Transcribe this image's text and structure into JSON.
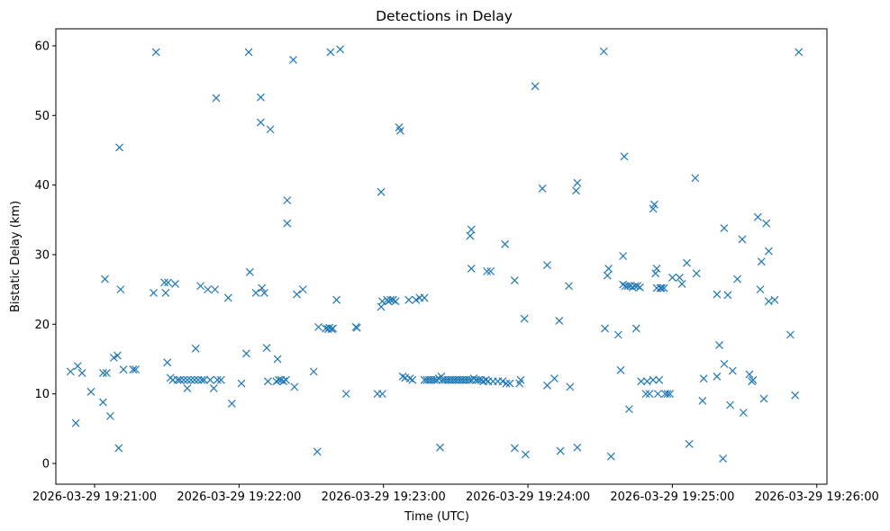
{
  "chart_data": {
    "type": "scatter",
    "title": "Detections in Delay",
    "xlabel": "Time (UTC)",
    "ylabel": "Bistatic Delay (km)",
    "marker": "x",
    "color": "#1f77b4",
    "x_unit": "seconds after 2026-03-29 19:21:00",
    "xlim": [
      -16.1,
      304.2
    ],
    "ylim": [
      -2.98,
      62.45
    ],
    "x_ticks": [
      {
        "value": 0,
        "label": "2026-03-29 19:21:00"
      },
      {
        "value": 60,
        "label": "2026-03-29 19:22:00"
      },
      {
        "value": 120,
        "label": "2026-03-29 19:23:00"
      },
      {
        "value": 180,
        "label": "2026-03-29 19:24:00"
      },
      {
        "value": 240,
        "label": "2026-03-29 19:25:00"
      },
      {
        "value": 300,
        "label": "2026-03-29 19:26:00"
      }
    ],
    "y_ticks": [
      {
        "value": 0,
        "label": "0"
      },
      {
        "value": 10,
        "label": "10"
      },
      {
        "value": 20,
        "label": "20"
      },
      {
        "value": 30,
        "label": "30"
      },
      {
        "value": 40,
        "label": "40"
      },
      {
        "value": 50,
        "label": "50"
      },
      {
        "value": 60,
        "label": "60"
      }
    ],
    "points": [
      [
        -10.0,
        13.2
      ],
      [
        -7.8,
        5.8
      ],
      [
        -7.0,
        14.0
      ],
      [
        -5.2,
        13.0
      ],
      [
        -1.5,
        10.3
      ],
      [
        3.5,
        8.8
      ],
      [
        3.5,
        13.0
      ],
      [
        4.3,
        26.5
      ],
      [
        5.0,
        13.0
      ],
      [
        6.5,
        6.8
      ],
      [
        8.0,
        15.2
      ],
      [
        9.5,
        15.5
      ],
      [
        10.0,
        2.2
      ],
      [
        10.3,
        45.4
      ],
      [
        10.8,
        25.0
      ],
      [
        12.0,
        13.5
      ],
      [
        16.0,
        13.5
      ],
      [
        17.0,
        13.5
      ],
      [
        24.5,
        24.5
      ],
      [
        25.5,
        59.1
      ],
      [
        29.0,
        26.0
      ],
      [
        29.5,
        24.5
      ],
      [
        30.2,
        14.5
      ],
      [
        30.5,
        26.0
      ],
      [
        31.5,
        12.3
      ],
      [
        32.5,
        12.0
      ],
      [
        33.5,
        25.8
      ],
      [
        34.5,
        12.0
      ],
      [
        35.5,
        12.0
      ],
      [
        37.0,
        12.0
      ],
      [
        38.5,
        12.0
      ],
      [
        38.5,
        10.8
      ],
      [
        40.0,
        12.0
      ],
      [
        41.5,
        12.0
      ],
      [
        42.0,
        16.5
      ],
      [
        43.0,
        12.0
      ],
      [
        44.0,
        25.5
      ],
      [
        44.5,
        12.0
      ],
      [
        45.5,
        12.0
      ],
      [
        47.0,
        25.0
      ],
      [
        48.0,
        12.0
      ],
      [
        49.5,
        10.8
      ],
      [
        50.0,
        25.0
      ],
      [
        50.5,
        52.5
      ],
      [
        51.0,
        12.0
      ],
      [
        52.5,
        12.0
      ],
      [
        55.5,
        23.8
      ],
      [
        57.0,
        8.6
      ],
      [
        61.0,
        11.5
      ],
      [
        63.0,
        15.8
      ],
      [
        64.0,
        59.1
      ],
      [
        64.5,
        27.5
      ],
      [
        67.0,
        24.5
      ],
      [
        69.0,
        52.6
      ],
      [
        69.0,
        49.0
      ],
      [
        69.5,
        25.2
      ],
      [
        70.5,
        24.5
      ],
      [
        71.5,
        16.6
      ],
      [
        72.0,
        11.8
      ],
      [
        73.0,
        48.0
      ],
      [
        75.5,
        11.8
      ],
      [
        76.0,
        15.0
      ],
      [
        76.5,
        12.0
      ],
      [
        77.5,
        12.0
      ],
      [
        78.5,
        11.8
      ],
      [
        79.5,
        12.0
      ],
      [
        80.0,
        37.8
      ],
      [
        80.0,
        34.5
      ],
      [
        82.5,
        58.0
      ],
      [
        83.0,
        11.0
      ],
      [
        84.0,
        24.3
      ],
      [
        86.5,
        25.0
      ],
      [
        91.0,
        13.2
      ],
      [
        92.5,
        1.7
      ],
      [
        93.0,
        19.6
      ],
      [
        96.0,
        19.4
      ],
      [
        97.0,
        19.3
      ],
      [
        97.5,
        19.5
      ],
      [
        98.0,
        59.1
      ],
      [
        98.5,
        19.3
      ],
      [
        99.0,
        19.4
      ],
      [
        100.5,
        23.5
      ],
      [
        102.0,
        59.5
      ],
      [
        104.5,
        10.0
      ],
      [
        108.5,
        19.6
      ],
      [
        109.0,
        19.5
      ],
      [
        117.5,
        10.0
      ],
      [
        119.5,
        10.0
      ],
      [
        119.0,
        39.0
      ],
      [
        119.0,
        22.5
      ],
      [
        119.5,
        23.3
      ],
      [
        121.5,
        23.5
      ],
      [
        122.0,
        23.3
      ],
      [
        123.0,
        23.5
      ],
      [
        124.0,
        23.5
      ],
      [
        125.0,
        23.3
      ],
      [
        126.5,
        48.3
      ],
      [
        127.0,
        47.8
      ],
      [
        128.0,
        12.5
      ],
      [
        129.0,
        12.3
      ],
      [
        130.5,
        23.5
      ],
      [
        131.0,
        12.2
      ],
      [
        132.0,
        12.0
      ],
      [
        133.5,
        23.5
      ],
      [
        135.0,
        23.8
      ],
      [
        137.0,
        23.8
      ],
      [
        137.0,
        12.0
      ],
      [
        138.0,
        12.0
      ],
      [
        139.0,
        12.0
      ],
      [
        140.0,
        12.0
      ],
      [
        141.0,
        12.0
      ],
      [
        142.0,
        12.0
      ],
      [
        143.0,
        12.2
      ],
      [
        143.5,
        2.3
      ],
      [
        144.0,
        12.5
      ],
      [
        144.5,
        12.0
      ],
      [
        145.5,
        12.0
      ],
      [
        146.5,
        12.0
      ],
      [
        147.5,
        12.0
      ],
      [
        148.5,
        12.0
      ],
      [
        149.5,
        12.0
      ],
      [
        150.5,
        12.0
      ],
      [
        151.5,
        12.0
      ],
      [
        152.5,
        12.0
      ],
      [
        153.5,
        12.0
      ],
      [
        154.5,
        12.0
      ],
      [
        155.5,
        12.0
      ],
      [
        156.0,
        32.7
      ],
      [
        156.5,
        33.6
      ],
      [
        156.5,
        28.0
      ],
      [
        156.5,
        12.0
      ],
      [
        157.5,
        12.2
      ],
      [
        158.5,
        12.0
      ],
      [
        159.5,
        12.0
      ],
      [
        160.5,
        12.0
      ],
      [
        161.5,
        11.8
      ],
      [
        162.5,
        12.0
      ],
      [
        163.0,
        27.6
      ],
      [
        163.5,
        11.8
      ],
      [
        164.5,
        27.6
      ],
      [
        165.5,
        11.8
      ],
      [
        167.5,
        11.8
      ],
      [
        169.5,
        11.8
      ],
      [
        170.5,
        31.5
      ],
      [
        171.0,
        11.5
      ],
      [
        172.5,
        11.5
      ],
      [
        174.5,
        26.3
      ],
      [
        174.5,
        2.2
      ],
      [
        176.5,
        11.5
      ],
      [
        177.0,
        12.0
      ],
      [
        178.5,
        20.8
      ],
      [
        179.0,
        1.3
      ],
      [
        183.0,
        54.2
      ],
      [
        186.0,
        39.5
      ],
      [
        188.0,
        28.5
      ],
      [
        188.0,
        11.2
      ],
      [
        191.0,
        12.2
      ],
      [
        193.0,
        20.5
      ],
      [
        193.5,
        1.8
      ],
      [
        197.0,
        25.5
      ],
      [
        197.5,
        11.0
      ],
      [
        200.0,
        39.2
      ],
      [
        200.5,
        40.3
      ],
      [
        200.5,
        2.3
      ],
      [
        211.5,
        59.2
      ],
      [
        212.0,
        19.4
      ],
      [
        213.0,
        27.0
      ],
      [
        213.5,
        28.0
      ],
      [
        214.5,
        1.0
      ],
      [
        217.5,
        18.5
      ],
      [
        218.5,
        13.4
      ],
      [
        219.5,
        25.7
      ],
      [
        219.5,
        29.8
      ],
      [
        220.0,
        44.1
      ],
      [
        220.5,
        25.5
      ],
      [
        221.5,
        25.5
      ],
      [
        222.0,
        7.8
      ],
      [
        222.5,
        25.5
      ],
      [
        223.5,
        25.3
      ],
      [
        224.5,
        25.5
      ],
      [
        225.0,
        19.4
      ],
      [
        225.5,
        25.5
      ],
      [
        226.5,
        25.3
      ],
      [
        227.0,
        11.8
      ],
      [
        229.0,
        10.0
      ],
      [
        229.5,
        11.8
      ],
      [
        230.5,
        10.0
      ],
      [
        232.0,
        12.0
      ],
      [
        232.0,
        36.6
      ],
      [
        232.5,
        37.2
      ],
      [
        233.0,
        27.3
      ],
      [
        233.5,
        25.2
      ],
      [
        233.5,
        28.0
      ],
      [
        234.0,
        10.0
      ],
      [
        234.5,
        12.0
      ],
      [
        235.0,
        25.2
      ],
      [
        235.5,
        25.2
      ],
      [
        236.5,
        25.2
      ],
      [
        237.0,
        10.0
      ],
      [
        238.0,
        10.0
      ],
      [
        239.0,
        10.0
      ],
      [
        240.0,
        26.7
      ],
      [
        243.0,
        26.7
      ],
      [
        244.0,
        25.8
      ],
      [
        246.0,
        28.8
      ],
      [
        247.0,
        2.8
      ],
      [
        249.5,
        41.0
      ],
      [
        250.0,
        27.3
      ],
      [
        252.5,
        9.0
      ],
      [
        253.0,
        12.2
      ],
      [
        258.5,
        24.3
      ],
      [
        258.5,
        12.5
      ],
      [
        259.5,
        17.0
      ],
      [
        261.0,
        0.7
      ],
      [
        261.5,
        33.8
      ],
      [
        261.5,
        14.3
      ],
      [
        263.0,
        24.2
      ],
      [
        264.0,
        8.4
      ],
      [
        265.0,
        13.3
      ],
      [
        267.0,
        26.5
      ],
      [
        269.0,
        32.2
      ],
      [
        269.5,
        7.3
      ],
      [
        272.0,
        12.8
      ],
      [
        273.0,
        11.8
      ],
      [
        273.5,
        12.0
      ],
      [
        275.5,
        35.4
      ],
      [
        276.5,
        25.0
      ],
      [
        277.0,
        29.0
      ],
      [
        278.0,
        9.3
      ],
      [
        279.0,
        34.5
      ],
      [
        280.0,
        23.3
      ],
      [
        280.0,
        30.5
      ],
      [
        282.5,
        23.5
      ],
      [
        289.0,
        18.5
      ],
      [
        291.0,
        9.8
      ],
      [
        292.5,
        59.1
      ]
    ]
  }
}
